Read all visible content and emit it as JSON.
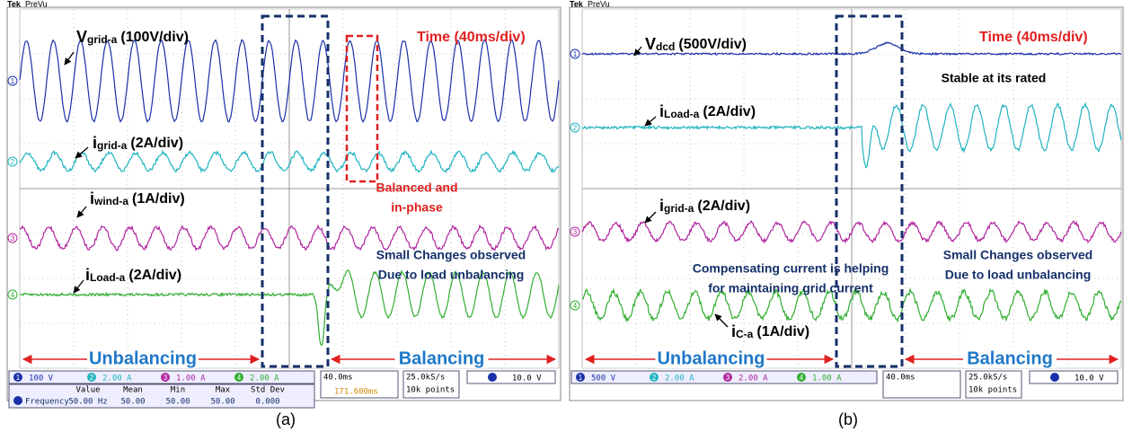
{
  "panel_a": {
    "header": {
      "brand": "Tek",
      "mode": "PreVu"
    },
    "time_scale": "Time (40ms/div)",
    "signals": [
      {
        "symbol": "V",
        "subscript": "grid-a",
        "scale": "(100V/div)"
      },
      {
        "symbol": "i",
        "subscript": "grid-a",
        "scale": "(2A/div)"
      },
      {
        "symbol": "i",
        "subscript": "wind-a",
        "scale": "(1A/div)"
      },
      {
        "symbol": "i",
        "subscript": "Load-a",
        "scale": "(2A/div)"
      }
    ],
    "notes": [
      [
        "Balanced and",
        "in-phase"
      ],
      [
        "Small Changes observed",
        "Due to load unbalancing"
      ]
    ],
    "regions": {
      "left": "Unbalancing",
      "right": "Balancing"
    },
    "channel_markers": [
      "1",
      "2",
      "3",
      "4"
    ],
    "status": {
      "channels": [
        "100 V",
        "2.00 A",
        "1.00 A",
        "2.00 A"
      ],
      "timebase": "40.0ms",
      "trigger_pos": "171.600ms",
      "sample_rate": "25.0kS/s",
      "record_length": "10k points",
      "trigger_level": "10.0 V",
      "measure_headers": [
        "Value",
        "Mean",
        "Min",
        "Max",
        "Std Dev"
      ],
      "measure_name": "Frequency",
      "measure_values": [
        "50.00 Hz",
        "50.00",
        "50.00",
        "50.00",
        "0.000"
      ]
    },
    "caption": "(a)"
  },
  "panel_b": {
    "header": {
      "brand": "Tek",
      "mode": "PreVu"
    },
    "time_scale": "Time (40ms/div)",
    "signals": [
      {
        "symbol": "V",
        "subscript": "dcd",
        "scale": "(500V/div)"
      },
      {
        "symbol": "i",
        "subscript": "Load-a",
        "scale": "(2A/div)"
      },
      {
        "symbol": "i",
        "subscript": "grid-a",
        "scale": "(2A/div)"
      },
      {
        "symbol": "i",
        "subscript": "C-a",
        "scale": "(1A/div)"
      }
    ],
    "notes": [
      [
        "Stable at its rated"
      ],
      [
        "Compensating current is helping",
        "for maintaining grid current"
      ],
      [
        "Small Changes observed",
        "Due to load unbalancing"
      ]
    ],
    "regions": {
      "left": "Unbalancing",
      "right": "Balancing"
    },
    "channel_markers": [
      "1",
      "2",
      "3",
      "4"
    ],
    "status": {
      "channels": [
        "500 V",
        "2.00 A",
        "2.00 A",
        "1.00 A"
      ],
      "timebase": "40.0ms",
      "sample_rate": "25.0kS/s",
      "record_length": "10k points",
      "trigger_level": "10.0 V"
    },
    "caption": "(b)"
  }
}
